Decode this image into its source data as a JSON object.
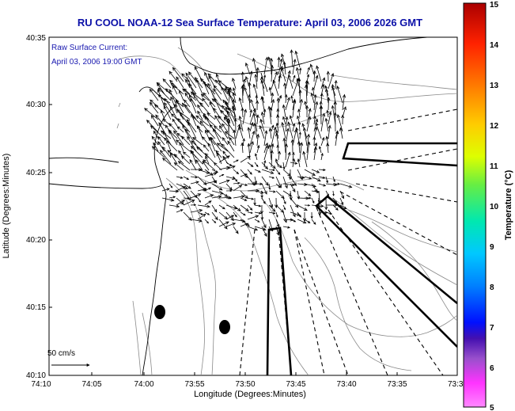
{
  "title": "RU COOL  NOAA-12  Sea Surface Temperature:  April 03, 2006 2026 GMT",
  "title_color": "#0b10a8",
  "inset_label": {
    "line1": "Raw Surface Current:",
    "line2": "April 03, 2006 19:00 GMT",
    "color": "#1a1ab0"
  },
  "x_axis": {
    "label": "Longitude (Degrees:Minutes)",
    "ticks": [
      "74:10",
      "74:05",
      "74:00",
      "73:55",
      "73:50",
      "73:45",
      "73:40",
      "73:35",
      "73:3"
    ]
  },
  "y_axis": {
    "label": "Latitude (Degrees:Minutes)",
    "ticks": [
      "40:35",
      "40:30",
      "40:25",
      "40:20",
      "40:15",
      "40:10"
    ]
  },
  "scale_bar": {
    "label": "50 cm/s"
  },
  "colorbar": {
    "label": "Temperature (°C)",
    "ticks": [
      "15",
      "14",
      "13",
      "12",
      "11",
      "10",
      "9",
      "8",
      "7",
      "6",
      "5"
    ],
    "colors": [
      "#cc0000",
      "#ff2200",
      "#ff7700",
      "#ffcc00",
      "#ddff00",
      "#66ee44",
      "#00e8b0",
      "#00c8ff",
      "#0080ff",
      "#0010ff",
      "#4410b0",
      "#9950cc",
      "#ff33ff",
      "#ff88ff"
    ]
  }
}
